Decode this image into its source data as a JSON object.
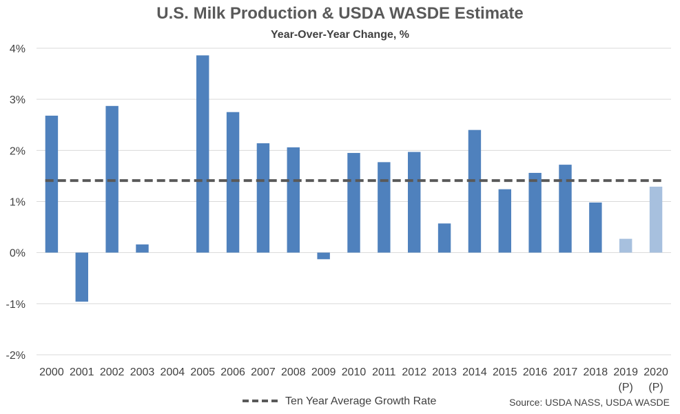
{
  "chart_data": {
    "type": "bar",
    "title": "U.S. Milk Production & USDA WASDE Estimate",
    "subtitle": "Year-Over-Year Change, %",
    "categories": [
      "2000",
      "2001",
      "2002",
      "2003",
      "2004",
      "2005",
      "2006",
      "2007",
      "2008",
      "2009",
      "2010",
      "2011",
      "2012",
      "2013",
      "2014",
      "2015",
      "2016",
      "2017",
      "2018",
      "2019",
      "2020"
    ],
    "category_notes": [
      "",
      "",
      "",
      "",
      "",
      "",
      "",
      "",
      "",
      "",
      "",
      "",
      "",
      "",
      "",
      "",
      "",
      "",
      "",
      "(P)",
      "(P)"
    ],
    "values": [
      2.68,
      -0.96,
      2.87,
      0.16,
      0.0,
      3.86,
      2.75,
      2.14,
      2.06,
      -0.13,
      1.95,
      1.77,
      1.97,
      0.57,
      2.4,
      1.24,
      1.56,
      1.72,
      0.98,
      0.27,
      1.29
    ],
    "projected": [
      false,
      false,
      false,
      false,
      false,
      false,
      false,
      false,
      false,
      false,
      false,
      false,
      false,
      false,
      false,
      false,
      false,
      false,
      false,
      true,
      true
    ],
    "reference_line": {
      "name": "Ten Year Average Growth Rate",
      "value": 1.41,
      "style": "dashed"
    },
    "ylim": [
      -2,
      4
    ],
    "yticks": [
      -2,
      -1,
      0,
      1,
      2,
      3,
      4
    ],
    "ytick_labels": [
      "-2%",
      "-1%",
      "0%",
      "1%",
      "2%",
      "3%",
      "4%"
    ],
    "xlabel": "",
    "ylabel": "",
    "grid": true,
    "legend_position": "bottom",
    "source": "Source: USDA NASS, USDA WASDE",
    "colors": {
      "bar": "#4f81bd",
      "bar_projected": "#a7c0de",
      "reference_line": "#595959",
      "grid": "#d9d9d9",
      "text": "#404040",
      "title": "#595959"
    }
  }
}
